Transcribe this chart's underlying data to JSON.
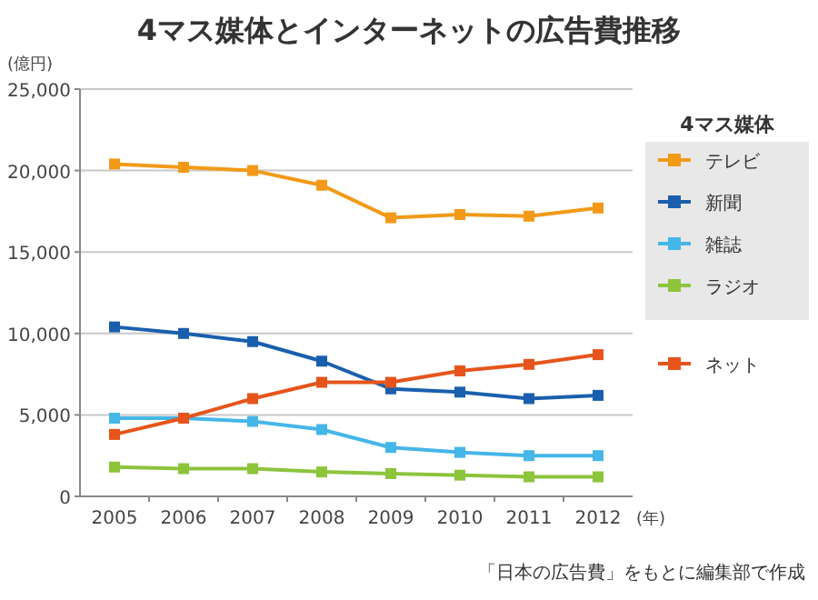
{
  "chart_data": {
    "type": "line",
    "title": "4マス媒体とインターネットの広告費推移",
    "ylabel": "(億円)",
    "xlabel": "(年)",
    "legend_title": "4マス媒体",
    "categories": [
      "2005",
      "2006",
      "2007",
      "2008",
      "2009",
      "2010",
      "2011",
      "2012"
    ],
    "series": [
      {
        "name": "テレビ",
        "color": "#f29a17",
        "values": [
          20400,
          20200,
          20000,
          19100,
          17100,
          17300,
          17200,
          17700
        ]
      },
      {
        "name": "新聞",
        "color": "#1a5fae",
        "values": [
          10400,
          10000,
          9500,
          8300,
          6600,
          6400,
          6000,
          6200
        ]
      },
      {
        "name": "雑誌",
        "color": "#45b6e8",
        "values": [
          4800,
          4800,
          4600,
          4100,
          3000,
          2700,
          2500,
          2500
        ]
      },
      {
        "name": "ラジオ",
        "color": "#8cc43c",
        "values": [
          1800,
          1700,
          1700,
          1500,
          1400,
          1300,
          1200,
          1200
        ]
      },
      {
        "name": "ネット",
        "color": "#e6541b",
        "values": [
          3800,
          4800,
          6000,
          7000,
          7000,
          7700,
          8100,
          8700
        ]
      }
    ],
    "ylim": [
      0,
      25000
    ],
    "yticks": [
      {
        "value": 0,
        "label": "0"
      },
      {
        "value": 5000,
        "label": "5,000"
      },
      {
        "value": 10000,
        "label": "10,000"
      },
      {
        "value": 15000,
        "label": "15,000"
      },
      {
        "value": 20000,
        "label": "20,000"
      },
      {
        "value": 25000,
        "label": "25,000"
      }
    ],
    "grid": "y",
    "legend": "right",
    "marker": "square",
    "line_style": "solid",
    "annotations": [
      "「日本の広告費」をもとに編集部で作成"
    ]
  }
}
